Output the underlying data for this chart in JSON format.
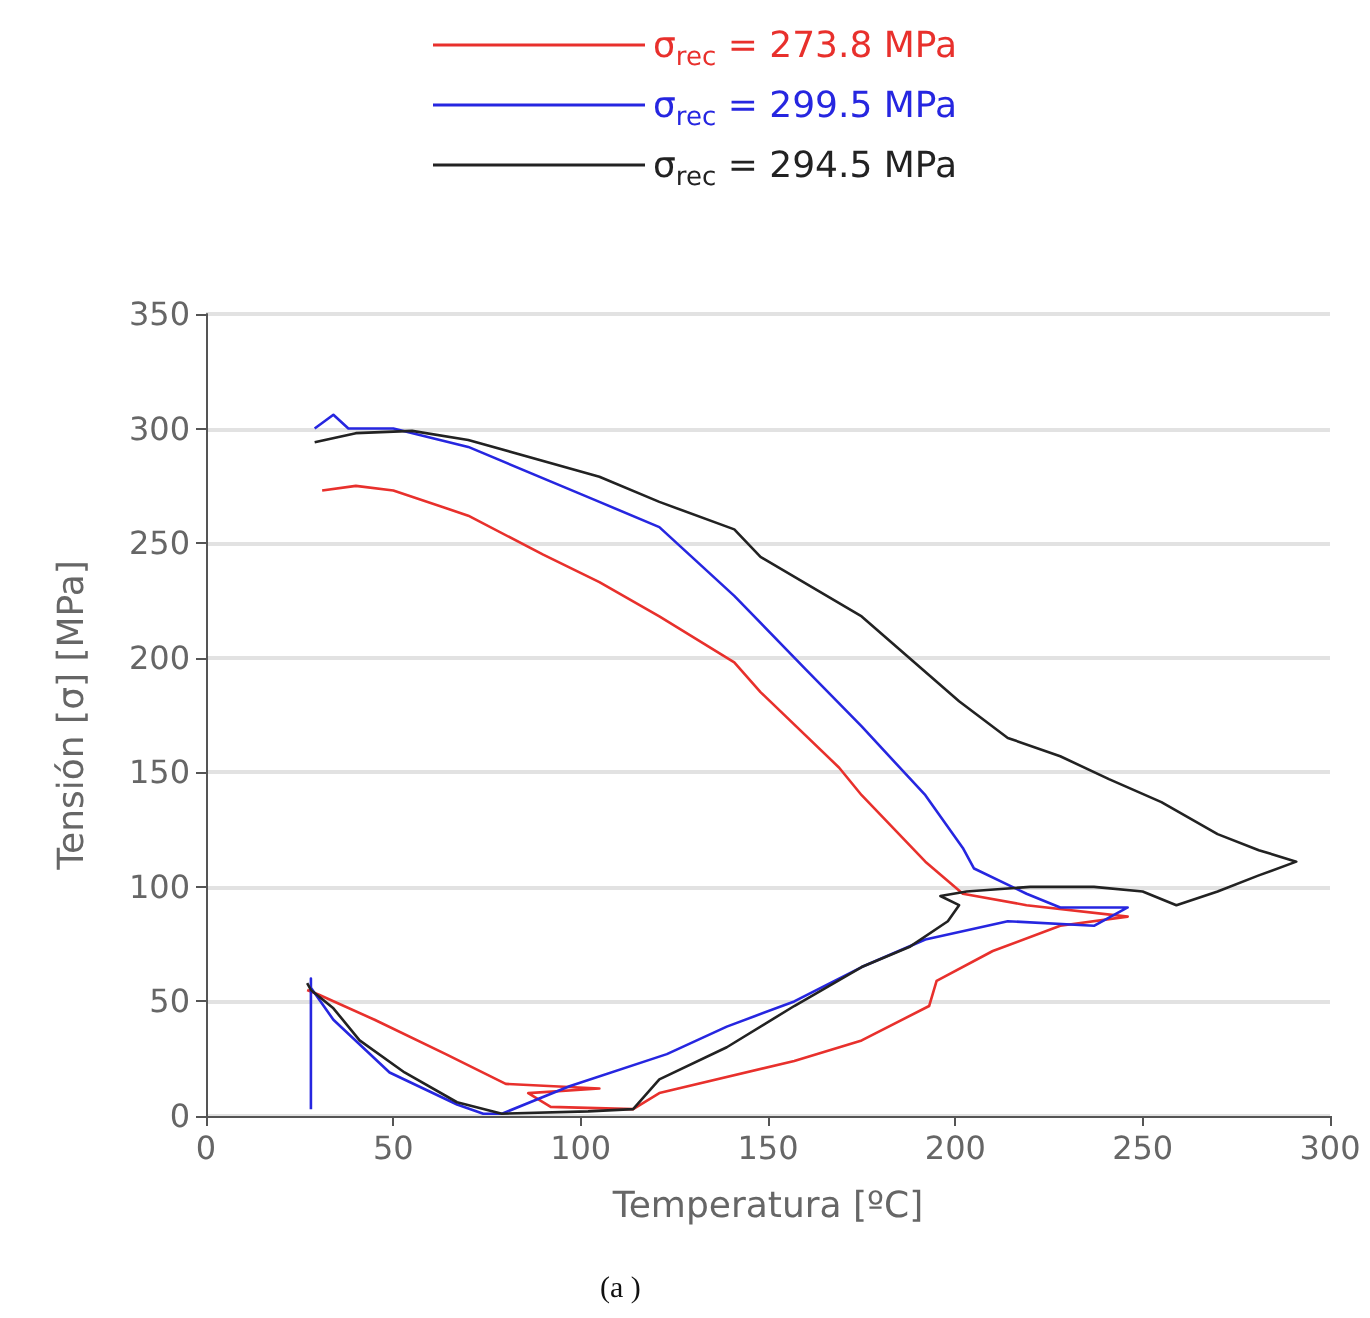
{
  "chart_data": {
    "type": "line",
    "xlabel": "Temperatura [ºC]",
    "ylabel": "Tensión [σ] [MPa]",
    "annotations": [
      "(a )"
    ],
    "xlim": [
      0,
      300
    ],
    "xticks": [
      0,
      50,
      100,
      150,
      200,
      250,
      300
    ],
    "ylim": [
      0,
      350
    ],
    "yticks": [
      0,
      50,
      100,
      150,
      200,
      250,
      300,
      350
    ],
    "grid": "y",
    "legend": "top",
    "marker": "none",
    "line_style": "solid",
    "series": [
      {
        "name": "σ$_{rec}$ = 273.8 MPa",
        "color": "#e8302c",
        "x": [
          31,
          40,
          50,
          70,
          90,
          105,
          121,
          141,
          148,
          169,
          175,
          192,
          202,
          219,
          246,
          228,
          210,
          195,
          193,
          175,
          157,
          121,
          114,
          92,
          86,
          105,
          80,
          64,
          45,
          30,
          27
        ],
        "values": [
          273,
          275,
          273,
          262,
          245,
          233,
          218,
          198,
          185,
          152,
          140,
          111,
          97,
          92,
          87,
          83,
          72,
          59,
          48,
          33,
          24,
          10,
          3,
          4,
          10,
          12,
          14,
          27,
          42,
          53,
          55
        ]
      },
      {
        "name": "σ$_{rec}$ = 299.5 MPa",
        "color": "#2626e0",
        "x": [
          29,
          34,
          38,
          50,
          70,
          105,
          121,
          141,
          160,
          175,
          192,
          202,
          205,
          219,
          228,
          246,
          237,
          214,
          192,
          175,
          157,
          139,
          123,
          97,
          79,
          74,
          67,
          49,
          34,
          28,
          28,
          28
        ],
        "values": [
          300,
          306,
          300,
          300,
          292,
          268,
          257,
          227,
          195,
          170,
          140,
          117,
          108,
          97,
          91,
          91,
          83,
          85,
          77,
          65,
          50,
          39,
          27,
          13,
          1,
          1,
          5,
          19,
          42,
          56,
          60,
          3
        ]
      },
      {
        "name": "σ$_{rec}$ = 294.5 MPa",
        "color": "#222222",
        "x": [
          29,
          40,
          55,
          70,
          105,
          121,
          141,
          148,
          175,
          201,
          214,
          228,
          241,
          255,
          270,
          281,
          291,
          281,
          270,
          259,
          250,
          237,
          220,
          203,
          196,
          201,
          198,
          188,
          175,
          157,
          139,
          121,
          114,
          102,
          79,
          67,
          53,
          41,
          34,
          28,
          27
        ],
        "values": [
          294,
          298,
          299,
          295,
          279,
          268,
          256,
          244,
          218,
          181,
          165,
          157,
          147,
          137,
          123,
          116,
          111,
          105,
          98,
          92,
          98,
          100,
          100,
          98,
          96,
          92,
          85,
          74,
          65,
          48,
          30,
          16,
          3,
          2,
          1,
          6,
          19,
          33,
          47,
          55,
          58
        ]
      }
    ]
  }
}
